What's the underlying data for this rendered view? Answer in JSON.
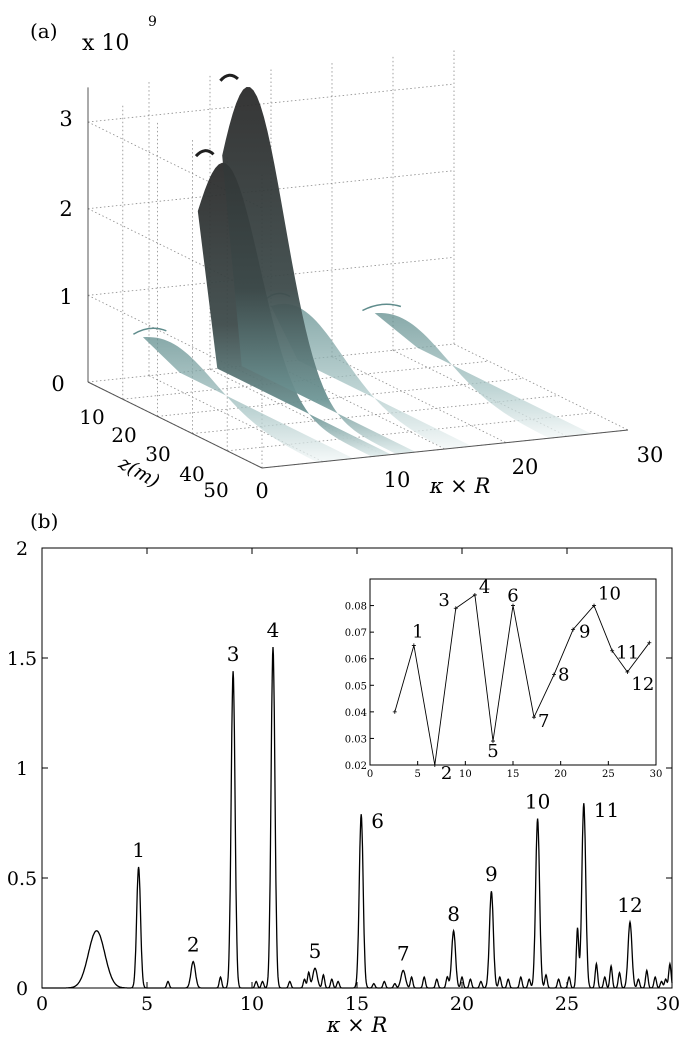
{
  "chart_data": [
    {
      "panel_label": "(a)",
      "type": "area",
      "view": "3d-surface",
      "scale_label": "x 10",
      "scale_exponent": "9",
      "z_ticks": [
        "0",
        "1",
        "2",
        "3"
      ],
      "z_range": [
        0,
        3.4
      ],
      "depth_ticks": [
        "10",
        "20",
        "30",
        "40",
        "50"
      ],
      "depth_label": "z(m)",
      "x_ticks": [
        "0",
        "10",
        "20",
        "30"
      ],
      "xlabel": "κ × R",
      "x_range": [
        0,
        30
      ],
      "depth_range": [
        0,
        50
      ],
      "grid": true,
      "colors": {
        "peak": "#2b2b2b",
        "surface": "#5f8c8c",
        "fade": "#e3eeee",
        "grid": "#8a8a8a"
      },
      "ridges": [
        {
          "x": 11,
          "peak": 3.4,
          "width": 1.6
        },
        {
          "x": 9,
          "peak": 2.55,
          "width": 1.6
        },
        {
          "x": 15,
          "peak": 0.8,
          "width": 2.2
        },
        {
          "x": 23.5,
          "peak": 0.55,
          "width": 3.5
        },
        {
          "x": 4.5,
          "peak": 0.55,
          "width": 3.0
        }
      ]
    },
    {
      "panel_label": "(b)",
      "type": "line",
      "xlim": [
        0,
        30
      ],
      "ylim": [
        0,
        2
      ],
      "x_ticks": [
        "0",
        "5",
        "10",
        "15",
        "20",
        "25",
        "30"
      ],
      "y_ticks": [
        "0",
        "0.5",
        "1",
        "1.5",
        "2"
      ],
      "xlabel": "κ × R",
      "color": "#000000",
      "peaks": [
        {
          "label": "1",
          "x": 4.6,
          "y": 0.55
        },
        {
          "label": "2",
          "x": 7.2,
          "y": 0.12
        },
        {
          "label": "3",
          "x": 9.1,
          "y": 1.44
        },
        {
          "label": "4",
          "x": 11.0,
          "y": 1.55
        },
        {
          "label": "5",
          "x": 13.0,
          "y": 0.09
        },
        {
          "label": "6",
          "x": 15.2,
          "y": 0.79
        },
        {
          "label": "7",
          "x": 17.2,
          "y": 0.08
        },
        {
          "label": "8",
          "x": 19.6,
          "y": 0.26
        },
        {
          "label": "9",
          "x": 21.4,
          "y": 0.44
        },
        {
          "label": "10",
          "x": 23.6,
          "y": 0.77
        },
        {
          "label": "11",
          "x": 25.8,
          "y": 0.84
        },
        {
          "label": "12",
          "x": 28.0,
          "y": 0.3
        }
      ],
      "broad_hump": {
        "x": 2.6,
        "y": 0.26,
        "width": 0.55
      },
      "minor_peaks": [
        {
          "x": 6.0,
          "y": 0.03
        },
        {
          "x": 8.5,
          "y": 0.05
        },
        {
          "x": 10.2,
          "y": 0.03
        },
        {
          "x": 10.5,
          "y": 0.03
        },
        {
          "x": 11.8,
          "y": 0.03
        },
        {
          "x": 12.5,
          "y": 0.04
        },
        {
          "x": 12.7,
          "y": 0.07
        },
        {
          "x": 13.4,
          "y": 0.06
        },
        {
          "x": 13.8,
          "y": 0.04
        },
        {
          "x": 14.1,
          "y": 0.03
        },
        {
          "x": 15.8,
          "y": 0.02
        },
        {
          "x": 16.3,
          "y": 0.03
        },
        {
          "x": 16.8,
          "y": 0.02
        },
        {
          "x": 17.6,
          "y": 0.05
        },
        {
          "x": 18.2,
          "y": 0.05
        },
        {
          "x": 18.8,
          "y": 0.04
        },
        {
          "x": 19.3,
          "y": 0.05
        },
        {
          "x": 20.0,
          "y": 0.05
        },
        {
          "x": 20.4,
          "y": 0.04
        },
        {
          "x": 20.9,
          "y": 0.03
        },
        {
          "x": 21.8,
          "y": 0.05
        },
        {
          "x": 22.2,
          "y": 0.04
        },
        {
          "x": 22.8,
          "y": 0.05
        },
        {
          "x": 23.2,
          "y": 0.04
        },
        {
          "x": 24.0,
          "y": 0.06
        },
        {
          "x": 24.6,
          "y": 0.04
        },
        {
          "x": 25.1,
          "y": 0.05
        },
        {
          "x": 25.5,
          "y": 0.27
        },
        {
          "x": 26.4,
          "y": 0.11
        },
        {
          "x": 26.8,
          "y": 0.05
        },
        {
          "x": 27.1,
          "y": 0.1
        },
        {
          "x": 27.5,
          "y": 0.07
        },
        {
          "x": 28.4,
          "y": 0.04
        },
        {
          "x": 28.8,
          "y": 0.08
        },
        {
          "x": 29.2,
          "y": 0.05
        },
        {
          "x": 29.5,
          "y": 0.03
        },
        {
          "x": 29.7,
          "y": 0.04
        },
        {
          "x": 29.9,
          "y": 0.11
        }
      ],
      "inset": {
        "type": "line",
        "xlim": [
          0,
          30
        ],
        "ylim": [
          0.02,
          0.09
        ],
        "x_ticks": [
          "0",
          "5",
          "10",
          "15",
          "20",
          "25",
          "30"
        ],
        "y_ticks": [
          "0.02",
          "0.03",
          "0.04",
          "0.05",
          "0.06",
          "0.07",
          "0.08"
        ],
        "color": "#000000",
        "points": [
          {
            "label": "",
            "x": 2.6,
            "y": 0.04
          },
          {
            "label": "1",
            "x": 4.6,
            "y": 0.065
          },
          {
            "label": "2",
            "x": 6.8,
            "y": 0.02
          },
          {
            "label": "3",
            "x": 9.0,
            "y": 0.079
          },
          {
            "label": "4",
            "x": 11.0,
            "y": 0.084
          },
          {
            "label": "5",
            "x": 12.9,
            "y": 0.029
          },
          {
            "label": "6",
            "x": 15.0,
            "y": 0.08
          },
          {
            "label": "7",
            "x": 17.2,
            "y": 0.038
          },
          {
            "label": "8",
            "x": 19.3,
            "y": 0.054
          },
          {
            "label": "9",
            "x": 21.3,
            "y": 0.071
          },
          {
            "label": "10",
            "x": 23.5,
            "y": 0.08
          },
          {
            "label": "11",
            "x": 25.4,
            "y": 0.063
          },
          {
            "label": "12",
            "x": 27.0,
            "y": 0.055
          },
          {
            "label": "",
            "x": 29.3,
            "y": 0.066
          }
        ]
      }
    }
  ]
}
